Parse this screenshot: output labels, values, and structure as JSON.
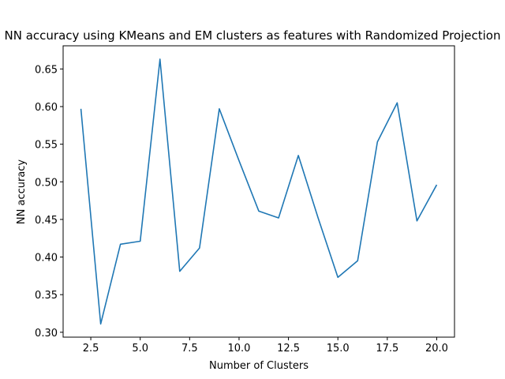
{
  "chart_data": {
    "type": "line",
    "title": "NN accuracy using KMeans and EM clusters as features with Randomized Projection",
    "xlabel": "Number of Clusters",
    "ylabel": "NN accuracy",
    "xlim": [
      1.1,
      20.9
    ],
    "ylim": [
      0.2935,
      0.6808
    ],
    "xticks": [
      2.5,
      5.0,
      7.5,
      10.0,
      12.5,
      15.0,
      17.5,
      20.0
    ],
    "xtick_labels": [
      "2.5",
      "5.0",
      "7.5",
      "10.0",
      "12.5",
      "15.0",
      "17.5",
      "20.0"
    ],
    "yticks": [
      0.3,
      0.35,
      0.4,
      0.45,
      0.5,
      0.55,
      0.6,
      0.65
    ],
    "ytick_labels": [
      "0.30",
      "0.35",
      "0.40",
      "0.45",
      "0.50",
      "0.55",
      "0.60",
      "0.65"
    ],
    "grid": false,
    "series": [
      {
        "color": "#1f77b4",
        "x": [
          2,
          3,
          4,
          5,
          6,
          7,
          8,
          9,
          10,
          11,
          12,
          13,
          14,
          15,
          16,
          17,
          18,
          19,
          20
        ],
        "y": [
          0.597,
          0.311,
          0.417,
          0.421,
          0.663,
          0.381,
          0.412,
          0.597,
          0.528,
          0.461,
          0.452,
          0.535,
          0.452,
          0.373,
          0.395,
          0.553,
          0.605,
          0.448,
          0.496
        ]
      }
    ]
  }
}
